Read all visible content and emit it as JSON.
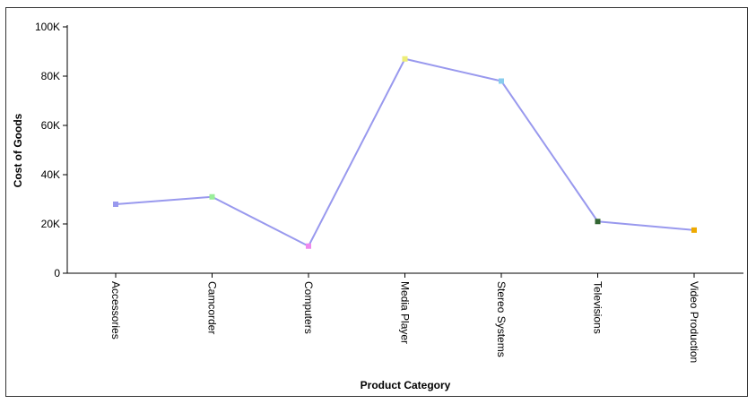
{
  "chart_data": {
    "type": "line",
    "categories": [
      "Accessories",
      "Camcorder",
      "Computers",
      "Media Player",
      "Stereo Systems",
      "Televisions",
      "Video Production"
    ],
    "series": [
      {
        "values": [
          28000,
          31000,
          11000,
          87000,
          78000,
          21000,
          17500
        ],
        "line_color": "#9999ee",
        "marker_colors": [
          "#9999ee",
          "#99ee99",
          "#ee88ee",
          "#eeee77",
          "#88ccee",
          "#336633",
          "#eeaa00"
        ]
      }
    ],
    "title": "",
    "xlabel": "Product Category",
    "ylabel": "Cost of Goods",
    "ylim": [
      0,
      100000
    ],
    "yticks": [
      0,
      20000,
      40000,
      60000,
      80000,
      100000
    ],
    "ytick_labels": [
      "0",
      "20K",
      "40K",
      "60K",
      "80K",
      "100K"
    ],
    "grid": false,
    "legend": "none"
  }
}
